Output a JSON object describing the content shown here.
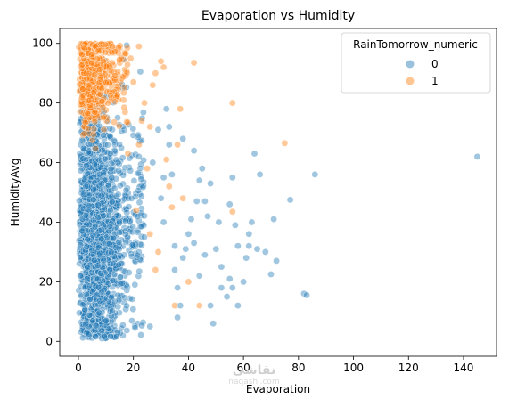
{
  "chart_data": {
    "type": "scatter",
    "title": "Evaporation vs Humidity",
    "xlabel": "Evaporation",
    "ylabel": "HumidityAvg",
    "xlim": [
      -6.8,
      152
    ],
    "ylim": [
      -5,
      105
    ],
    "xticks": [
      "0",
      "20",
      "40",
      "60",
      "80",
      "100",
      "120",
      "140"
    ],
    "yticks": [
      "0",
      "20",
      "40",
      "60",
      "80",
      "100"
    ],
    "grid": false,
    "legend": {
      "title": "RainTomorrow_numeric",
      "placement": "top-right",
      "entries": [
        "0",
        "1"
      ]
    },
    "series": [
      {
        "name": "0",
        "color": "#1f77b4",
        "points": [
          [
            145,
            62
          ],
          [
            86,
            56
          ],
          [
            82,
            16
          ],
          [
            83,
            15.5
          ],
          [
            77,
            47.5
          ],
          [
            72,
            27
          ],
          [
            71,
            41
          ],
          [
            70,
            22.5
          ],
          [
            66,
            56
          ],
          [
            65,
            31
          ],
          [
            64,
            63
          ],
          [
            62,
            32
          ],
          [
            61,
            28
          ],
          [
            58,
            32
          ],
          [
            56,
            55
          ],
          [
            55,
            46
          ],
          [
            57,
            39
          ],
          [
            63,
            40
          ],
          [
            68,
            30
          ],
          [
            62,
            36
          ],
          [
            55,
            21
          ],
          [
            54,
            15
          ],
          [
            52,
            18
          ],
          [
            50,
            31
          ],
          [
            48,
            12
          ],
          [
            46,
            47
          ],
          [
            45,
            58
          ],
          [
            44,
            54
          ],
          [
            42,
            64
          ],
          [
            41,
            41
          ],
          [
            40,
            36
          ],
          [
            39,
            31
          ],
          [
            38,
            28
          ],
          [
            37,
            12
          ],
          [
            36,
            8
          ],
          [
            35,
            24
          ],
          [
            34,
            56
          ],
          [
            33,
            66
          ],
          [
            32,
            78
          ],
          [
            31,
            55
          ],
          [
            30,
            48
          ],
          [
            48,
            53
          ],
          [
            52,
            25
          ],
          [
            46,
            29
          ],
          [
            44,
            22
          ],
          [
            42,
            33
          ],
          [
            49,
            6
          ],
          [
            38,
            68
          ],
          [
            29,
            71
          ],
          [
            33,
            72
          ],
          [
            35,
            32
          ],
          [
            36,
            18
          ],
          [
            31,
            40
          ],
          [
            27,
            60
          ],
          [
            26,
            5
          ],
          [
            24,
            35
          ],
          [
            58,
            12
          ],
          [
            60,
            20
          ],
          [
            56,
            18
          ],
          [
            51,
            40
          ],
          [
            47,
            42
          ],
          [
            43,
            47
          ]
        ],
        "dense_region": {
          "description_free": true,
          "x_range": [
            0,
            30
          ],
          "y_range": [
            1,
            100
          ],
          "center_x": 6,
          "y_center": 38,
          "count": 1600
        }
      },
      {
        "name": "1",
        "color": "#ff7f0e",
        "points": [
          [
            75,
            66.5
          ],
          [
            56,
            80
          ],
          [
            56,
            43.5
          ],
          [
            42,
            93.5
          ],
          [
            37,
            78
          ],
          [
            36,
            66
          ],
          [
            33,
            52
          ],
          [
            31,
            92
          ],
          [
            30,
            94
          ],
          [
            28,
            90
          ],
          [
            27,
            86
          ],
          [
            26,
            72
          ],
          [
            25,
            58
          ],
          [
            24,
            80
          ],
          [
            23,
            74
          ],
          [
            22,
            99
          ],
          [
            21,
            44
          ],
          [
            34,
            45
          ],
          [
            29,
            30
          ],
          [
            40,
            20
          ],
          [
            44,
            12
          ],
          [
            26,
            36
          ],
          [
            32,
            61
          ],
          [
            38,
            48
          ],
          [
            20,
            87
          ],
          [
            19,
            95
          ],
          [
            18,
            63
          ],
          [
            22,
            66
          ],
          [
            35,
            12
          ],
          [
            28,
            24
          ]
        ],
        "dense_region": {
          "description_free": true,
          "x_range": [
            0,
            20
          ],
          "y_range": [
            55,
            100
          ],
          "center_x": 7,
          "y_center": 88,
          "count": 600
        }
      }
    ]
  },
  "watermark": {
    "main": "نقاشی",
    "sub": "naqashi.com"
  }
}
